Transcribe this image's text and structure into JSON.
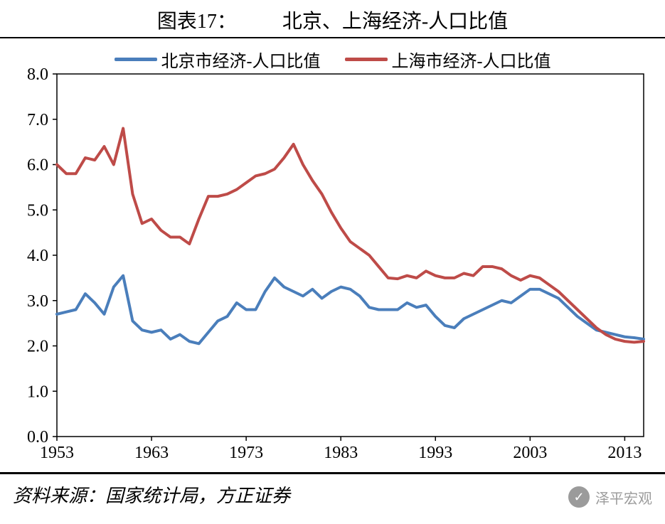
{
  "title_prefix": "图表17：",
  "title_main": "北京、上海经济-人口比值",
  "source_label": "资料来源：国家统计局，方正证券",
  "watermark": "泽平宏观",
  "chart": {
    "type": "line",
    "background_color": "#ffffff",
    "plot_border_color": "#000000",
    "plot_border_width": 1.5,
    "tick_color": "#000000",
    "tick_length_out": 6,
    "label_fontsize": 24,
    "label_fontfamily": "Times New Roman",
    "line_width": 4,
    "ylim": [
      0.0,
      8.0
    ],
    "ytick_step": 1.0,
    "yticks": [
      0.0,
      1.0,
      2.0,
      3.0,
      4.0,
      5.0,
      6.0,
      7.0,
      8.0
    ],
    "xlim": [
      1953,
      2015
    ],
    "xticks": [
      1953,
      1963,
      1973,
      1983,
      1993,
      2003,
      2013
    ],
    "legend": {
      "position": "top-center",
      "items": [
        {
          "label": "北京市经济-人口比值",
          "color": "#4a7ebb"
        },
        {
          "label": "上海市经济-人口比值",
          "color": "#be4b48"
        }
      ]
    },
    "series": [
      {
        "name": "beijing",
        "color": "#4a7ebb",
        "x": [
          1953,
          1954,
          1955,
          1956,
          1957,
          1958,
          1959,
          1960,
          1961,
          1962,
          1963,
          1964,
          1965,
          1966,
          1967,
          1968,
          1969,
          1970,
          1971,
          1972,
          1973,
          1974,
          1975,
          1976,
          1977,
          1978,
          1979,
          1980,
          1981,
          1982,
          1983,
          1984,
          1985,
          1986,
          1987,
          1988,
          1989,
          1990,
          1991,
          1992,
          1993,
          1994,
          1995,
          1996,
          1997,
          1998,
          1999,
          2000,
          2001,
          2002,
          2003,
          2004,
          2005,
          2006,
          2007,
          2008,
          2009,
          2010,
          2011,
          2012,
          2013,
          2014,
          2015
        ],
        "y": [
          2.7,
          2.75,
          2.8,
          3.15,
          2.95,
          2.7,
          3.3,
          3.55,
          2.55,
          2.35,
          2.3,
          2.35,
          2.15,
          2.25,
          2.1,
          2.05,
          2.3,
          2.55,
          2.65,
          2.95,
          2.8,
          2.8,
          3.2,
          3.5,
          3.3,
          3.2,
          3.1,
          3.25,
          3.05,
          3.2,
          3.3,
          3.25,
          3.1,
          2.85,
          2.8,
          2.8,
          2.8,
          2.95,
          2.85,
          2.9,
          2.65,
          2.45,
          2.4,
          2.6,
          2.7,
          2.8,
          2.9,
          3.0,
          2.95,
          3.1,
          3.25,
          3.25,
          3.15,
          3.05,
          2.85,
          2.65,
          2.5,
          2.35,
          2.3,
          2.25,
          2.2,
          2.18,
          2.15
        ]
      },
      {
        "name": "shanghai",
        "color": "#be4b48",
        "x": [
          1953,
          1954,
          1955,
          1956,
          1957,
          1958,
          1959,
          1960,
          1961,
          1962,
          1963,
          1964,
          1965,
          1966,
          1967,
          1968,
          1969,
          1970,
          1971,
          1972,
          1973,
          1974,
          1975,
          1976,
          1977,
          1978,
          1979,
          1980,
          1981,
          1982,
          1983,
          1984,
          1985,
          1986,
          1987,
          1988,
          1989,
          1990,
          1991,
          1992,
          1993,
          1994,
          1995,
          1996,
          1997,
          1998,
          1999,
          2000,
          2001,
          2002,
          2003,
          2004,
          2005,
          2006,
          2007,
          2008,
          2009,
          2010,
          2011,
          2012,
          2013,
          2014,
          2015
        ],
        "y": [
          6.0,
          5.8,
          5.8,
          6.15,
          6.1,
          6.4,
          6.0,
          6.8,
          5.35,
          4.7,
          4.8,
          4.55,
          4.4,
          4.4,
          4.25,
          4.8,
          5.3,
          5.3,
          5.35,
          5.45,
          5.6,
          5.75,
          5.8,
          5.9,
          6.15,
          6.45,
          6.0,
          5.65,
          5.35,
          4.95,
          4.6,
          4.3,
          4.15,
          4.0,
          3.75,
          3.5,
          3.48,
          3.55,
          3.5,
          3.65,
          3.55,
          3.5,
          3.5,
          3.6,
          3.55,
          3.75,
          3.75,
          3.7,
          3.55,
          3.45,
          3.55,
          3.5,
          3.35,
          3.2,
          3.0,
          2.8,
          2.6,
          2.4,
          2.25,
          2.15,
          2.1,
          2.08,
          2.1
        ]
      }
    ]
  }
}
